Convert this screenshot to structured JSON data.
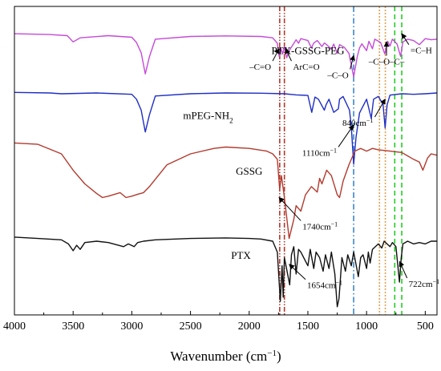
{
  "chart_data": {
    "type": "line",
    "title": "",
    "xlabel": "Wavenumber (cm",
    "xlabel_sup": "−1",
    "xlabel_suffix": ")",
    "ylabel": "",
    "xlim": [
      4000,
      400
    ],
    "x_reversed": true,
    "x_ticks": [
      4000,
      3500,
      3000,
      2500,
      2000,
      1500,
      1000,
      500
    ],
    "x_tick_labels": [
      "4000",
      "3500",
      "3000",
      "2500",
      "2000",
      "1500",
      "1000",
      "500"
    ],
    "y_ticks_shown": false,
    "grid": false,
    "legend": "none (labels placed next to each curve)",
    "series": [
      {
        "name": "PTX-GSSG-PEG",
        "color": "#c54ad8",
        "baseline": 0.9,
        "points": [
          [
            4000,
            0.9
          ],
          [
            3700,
            0.897
          ],
          [
            3550,
            0.893
          ],
          [
            3500,
            0.87
          ],
          [
            3440,
            0.885
          ],
          [
            3200,
            0.893
          ],
          [
            3000,
            0.887
          ],
          [
            2960,
            0.868
          ],
          [
            2920,
            0.83
          ],
          [
            2885,
            0.753
          ],
          [
            2850,
            0.815
          ],
          [
            2800,
            0.88
          ],
          [
            2500,
            0.89
          ],
          [
            2200,
            0.892
          ],
          [
            1900,
            0.89
          ],
          [
            1800,
            0.885
          ],
          [
            1760,
            0.865
          ],
          [
            1745,
            0.817
          ],
          [
            1730,
            0.846
          ],
          [
            1715,
            0.826
          ],
          [
            1700,
            0.852
          ],
          [
            1680,
            0.812
          ],
          [
            1660,
            0.838
          ],
          [
            1600,
            0.878
          ],
          [
            1580,
            0.865
          ],
          [
            1560,
            0.882
          ],
          [
            1500,
            0.875
          ],
          [
            1470,
            0.848
          ],
          [
            1450,
            0.866
          ],
          [
            1420,
            0.875
          ],
          [
            1380,
            0.853
          ],
          [
            1360,
            0.866
          ],
          [
            1340,
            0.86
          ],
          [
            1300,
            0.844
          ],
          [
            1280,
            0.862
          ],
          [
            1250,
            0.828
          ],
          [
            1230,
            0.86
          ],
          [
            1190,
            0.85
          ],
          [
            1150,
            0.828
          ],
          [
            1110,
            0.742
          ],
          [
            1080,
            0.815
          ],
          [
            1060,
            0.848
          ],
          [
            1040,
            0.863
          ],
          [
            1000,
            0.838
          ],
          [
            980,
            0.872
          ],
          [
            950,
            0.845
          ],
          [
            930,
            0.88
          ],
          [
            880,
            0.868
          ],
          [
            845,
            0.826
          ],
          [
            820,
            0.872
          ],
          [
            800,
            0.855
          ],
          [
            780,
            0.88
          ],
          [
            740,
            0.862
          ],
          [
            710,
            0.817
          ],
          [
            690,
            0.87
          ],
          [
            650,
            0.88
          ],
          [
            600,
            0.875
          ],
          [
            550,
            0.86
          ],
          [
            500,
            0.882
          ],
          [
            450,
            0.878
          ],
          [
            400,
            0.88
          ]
        ]
      },
      {
        "name": "mPEG-NH",
        "name_sub": "2",
        "color": "#1f2ec4",
        "baseline": 0.685,
        "points": [
          [
            4000,
            0.685
          ],
          [
            3700,
            0.683
          ],
          [
            3600,
            0.68
          ],
          [
            3300,
            0.683
          ],
          [
            3000,
            0.678
          ],
          [
            2960,
            0.66
          ],
          [
            2920,
            0.62
          ],
          [
            2885,
            0.54
          ],
          [
            2850,
            0.602
          ],
          [
            2800,
            0.672
          ],
          [
            2500,
            0.68
          ],
          [
            2200,
            0.683
          ],
          [
            1900,
            0.682
          ],
          [
            1700,
            0.68
          ],
          [
            1600,
            0.676
          ],
          [
            1500,
            0.674
          ],
          [
            1467,
            0.612
          ],
          [
            1440,
            0.668
          ],
          [
            1410,
            0.66
          ],
          [
            1360,
            0.62
          ],
          [
            1345,
            0.64
          ],
          [
            1320,
            0.66
          ],
          [
            1280,
            0.612
          ],
          [
            1240,
            0.625
          ],
          [
            1230,
            0.66
          ],
          [
            1200,
            0.67
          ],
          [
            1145,
            0.62
          ],
          [
            1130,
            0.56
          ],
          [
            1110,
            0.422
          ],
          [
            1090,
            0.52
          ],
          [
            1060,
            0.61
          ],
          [
            1000,
            0.66
          ],
          [
            960,
            0.59
          ],
          [
            940,
            0.66
          ],
          [
            900,
            0.67
          ],
          [
            860,
            0.642
          ],
          [
            842,
            0.555
          ],
          [
            825,
            0.64
          ],
          [
            800,
            0.675
          ],
          [
            700,
            0.68
          ],
          [
            600,
            0.678
          ],
          [
            500,
            0.68
          ],
          [
            400,
            0.683
          ]
        ]
      },
      {
        "name": "GSSG",
        "color": "#b23a2e",
        "baseline": 0.5,
        "points": [
          [
            4000,
            0.5
          ],
          [
            3800,
            0.495
          ],
          [
            3600,
            0.46
          ],
          [
            3500,
            0.4
          ],
          [
            3400,
            0.35
          ],
          [
            3300,
            0.315
          ],
          [
            3250,
            0.3
          ],
          [
            3200,
            0.305
          ],
          [
            3100,
            0.318
          ],
          [
            3050,
            0.3
          ],
          [
            3000,
            0.305
          ],
          [
            2950,
            0.312
          ],
          [
            2900,
            0.318
          ],
          [
            2850,
            0.34
          ],
          [
            2700,
            0.42
          ],
          [
            2500,
            0.46
          ],
          [
            2300,
            0.48
          ],
          [
            2200,
            0.485
          ],
          [
            2000,
            0.48
          ],
          [
            1850,
            0.47
          ],
          [
            1800,
            0.46
          ],
          [
            1760,
            0.44
          ],
          [
            1740,
            0.33
          ],
          [
            1725,
            0.38
          ],
          [
            1700,
            0.3
          ],
          [
            1660,
            0.15
          ],
          [
            1620,
            0.22
          ],
          [
            1600,
            0.27
          ],
          [
            1560,
            0.25
          ],
          [
            1520,
            0.31
          ],
          [
            1470,
            0.34
          ],
          [
            1420,
            0.32
          ],
          [
            1400,
            0.37
          ],
          [
            1380,
            0.35
          ],
          [
            1340,
            0.4
          ],
          [
            1300,
            0.38
          ],
          [
            1250,
            0.31
          ],
          [
            1230,
            0.3
          ],
          [
            1200,
            0.36
          ],
          [
            1150,
            0.42
          ],
          [
            1100,
            0.47
          ],
          [
            1050,
            0.48
          ],
          [
            1000,
            0.47
          ],
          [
            950,
            0.48
          ],
          [
            900,
            0.475
          ],
          [
            800,
            0.47
          ],
          [
            700,
            0.465
          ],
          [
            600,
            0.44
          ],
          [
            550,
            0.43
          ],
          [
            520,
            0.4
          ],
          [
            480,
            0.445
          ],
          [
            450,
            0.46
          ],
          [
            400,
            0.455
          ]
        ]
      },
      {
        "name": "PTX",
        "color": "#111111",
        "baseline": 0.155,
        "points": [
          [
            4000,
            0.155
          ],
          [
            3800,
            0.15
          ],
          [
            3600,
            0.145
          ],
          [
            3540,
            0.13
          ],
          [
            3500,
            0.105
          ],
          [
            3470,
            0.125
          ],
          [
            3440,
            0.11
          ],
          [
            3400,
            0.135
          ],
          [
            3300,
            0.14
          ],
          [
            3200,
            0.135
          ],
          [
            3070,
            0.12
          ],
          [
            3030,
            0.13
          ],
          [
            2980,
            0.12
          ],
          [
            2950,
            0.135
          ],
          [
            2900,
            0.14
          ],
          [
            2800,
            0.145
          ],
          [
            2500,
            0.15
          ],
          [
            2200,
            0.152
          ],
          [
            2000,
            0.15
          ],
          [
            1900,
            0.148
          ],
          [
            1800,
            0.14
          ],
          [
            1760,
            0.1
          ],
          [
            1735,
            -0.08
          ],
          [
            1720,
            0.05
          ],
          [
            1710,
            -0.065
          ],
          [
            1700,
            0.08
          ],
          [
            1655,
            -0.02
          ],
          [
            1640,
            0.09
          ],
          [
            1620,
            0.12
          ],
          [
            1600,
            0.02
          ],
          [
            1580,
            0.11
          ],
          [
            1560,
            0.1
          ],
          [
            1500,
            0.05
          ],
          [
            1480,
            0.11
          ],
          [
            1450,
            0.04
          ],
          [
            1430,
            0.1
          ],
          [
            1400,
            0.08
          ],
          [
            1370,
            0.03
          ],
          [
            1350,
            0.09
          ],
          [
            1320,
            0.04
          ],
          [
            1300,
            0.1
          ],
          [
            1270,
            0.02
          ],
          [
            1250,
            -0.1
          ],
          [
            1235,
            -0.07
          ],
          [
            1210,
            0.08
          ],
          [
            1180,
            0.03
          ],
          [
            1160,
            0.09
          ],
          [
            1130,
            0.05
          ],
          [
            1110,
            0.1
          ],
          [
            1070,
            0.01
          ],
          [
            1050,
            0.08
          ],
          [
            1030,
            0.09
          ],
          [
            1000,
            0.04
          ],
          [
            985,
            0.1
          ],
          [
            970,
            0.06
          ],
          [
            950,
            0.11
          ],
          [
            900,
            0.13
          ],
          [
            870,
            0.115
          ],
          [
            850,
            0.14
          ],
          [
            800,
            0.12
          ],
          [
            780,
            0.135
          ],
          [
            750,
            0.12
          ],
          [
            720,
            -0.01
          ],
          [
            705,
            0.08
          ],
          [
            690,
            0.13
          ],
          [
            650,
            0.14
          ],
          [
            600,
            0.13
          ],
          [
            550,
            0.135
          ],
          [
            500,
            0.13
          ],
          [
            450,
            0.14
          ],
          [
            400,
            0.14
          ]
        ]
      }
    ],
    "reference_lines": [
      {
        "x": 1740,
        "color": "#b23a2e",
        "style": "dash-dot-dot"
      },
      {
        "x": 1700,
        "color": "#b23a2e",
        "style": "dash-dot-dot"
      },
      {
        "x": 1110,
        "color": "#3a86c8",
        "style": "dash-dot"
      },
      {
        "x": 890,
        "color": "#e6a050",
        "style": "dotted"
      },
      {
        "x": 840,
        "color": "#e6a050",
        "style": "dotted"
      },
      {
        "x": 760,
        "color": "#22cc22",
        "style": "dashed"
      },
      {
        "x": 700,
        "color": "#22cc22",
        "style": "dashed"
      }
    ],
    "annotations": [
      {
        "text": "1740cm",
        "sup": "−1",
        "arrow_from": [
          1560,
          0.215
        ],
        "arrow_to": [
          1745,
          0.3
        ]
      },
      {
        "text": "1654cm",
        "sup": "−1",
        "arrow_from": [
          1520,
          0.0
        ],
        "arrow_to": [
          1658,
          0.055
        ]
      },
      {
        "text": "1110cm",
        "sup": "−1",
        "arrow_from": [
          1240,
          0.485
        ],
        "arrow_to": [
          1112,
          0.565
        ]
      },
      {
        "text": "840cm",
        "sup": "−1",
        "arrow_from": [
          930,
          0.595
        ],
        "arrow_to": [
          842,
          0.66
        ]
      },
      {
        "text": "722cm",
        "sup": "−1",
        "arrow_from": [
          655,
          0.005
        ],
        "arrow_to": [
          718,
          0.065
        ]
      },
      {
        "text": "–C=O",
        "arrow_from": [
          1800,
          0.8
        ],
        "arrow_to": [
          1745,
          0.845
        ]
      },
      {
        "text": "ArC=O",
        "arrow_from": [
          1640,
          0.8
        ],
        "arrow_to": [
          1690,
          0.845
        ]
      },
      {
        "text": "–C–O",
        "arrow_from": [
          1140,
          0.77
        ],
        "arrow_to": [
          1110,
          0.82
        ]
      },
      {
        "text": "–C–O–C–",
        "arrow_from": [
          830,
          0.82
        ],
        "arrow_to": [
          830,
          0.87
        ]
      },
      {
        "text": "=C–H",
        "arrow_from": [
          640,
          0.86
        ],
        "arrow_to": [
          700,
          0.9
        ]
      }
    ]
  }
}
